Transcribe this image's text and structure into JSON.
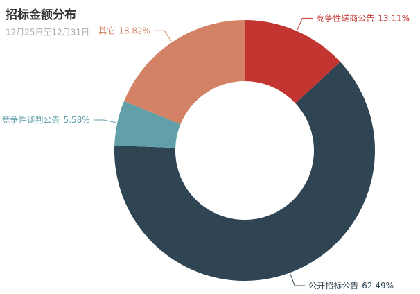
{
  "chart_data": {
    "type": "pie",
    "title": "招标金额分布",
    "subtitle": "12月25日至12月31日",
    "categories": [
      "竞争性磋商公告",
      "公开招标公告",
      "竞争性谈判公告",
      "其它"
    ],
    "values": [
      13.11,
      62.49,
      5.58,
      18.82
    ],
    "value_labels": [
      "13.11%",
      "62.49%",
      "5.58%",
      "18.82%"
    ],
    "colors": [
      "#c23531",
      "#2f4554",
      "#61a0a8",
      "#d48265"
    ]
  }
}
